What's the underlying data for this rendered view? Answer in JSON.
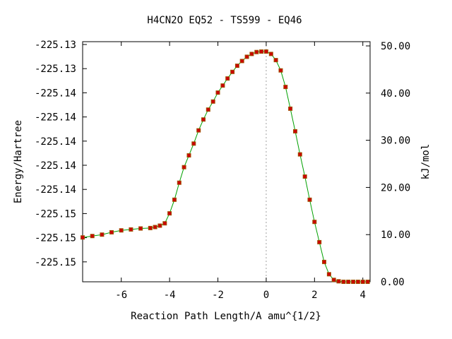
{
  "chart_data": {
    "type": "line",
    "title": "H4CN2O   EQ52 - TS599 - EQ46",
    "xlabel": "Reaction Path Length/A amu^{1/2}",
    "ylabel_left": "Energy/Hartree",
    "ylabel_right": "kJ/mol",
    "xlim": [
      -7.6,
      4.3
    ],
    "y_right_lim": [
      0,
      50.9
    ],
    "x_ticks": [
      -6,
      -4,
      -2,
      0,
      2,
      4
    ],
    "x_tick_labels": [
      "-6",
      "-4",
      "-2",
      "0",
      "2",
      "4"
    ],
    "y_left_tick_labels": [
      "-225.13",
      "-225.13",
      "-225.14",
      "-225.14",
      "-225.14",
      "-225.14",
      "-225.14",
      "-225.15",
      "-225.15",
      "-225.15"
    ],
    "y_right_ticks": [
      0,
      10,
      20,
      30,
      40,
      50
    ],
    "y_right_tick_labels": [
      "0.00",
      "10.00",
      "20.00",
      "30.00",
      "40.00",
      "50.00"
    ],
    "ts_x": 0,
    "grid": false,
    "colors": {
      "points": "#cc0000",
      "line": "#00a000",
      "ts_marker": "#a0a0a0"
    },
    "series": [
      {
        "x": [
          -7.6,
          -7.2,
          -6.8,
          -6.4,
          -6.0,
          -5.6,
          -5.2,
          -4.8,
          -4.6,
          -4.4,
          -4.2,
          -4.0,
          -3.8,
          -3.6,
          -3.4,
          -3.2,
          -3.0,
          -2.8,
          -2.6,
          -2.4,
          -2.2,
          -2.0,
          -1.8,
          -1.6,
          -1.4,
          -1.2,
          -1.0,
          -0.8,
          -0.6,
          -0.4,
          -0.2,
          0.0,
          0.2,
          0.4,
          0.6,
          0.8,
          1.0,
          1.2,
          1.4,
          1.6,
          1.8,
          2.0,
          2.2,
          2.4,
          2.6,
          2.8,
          3.0,
          3.2,
          3.4,
          3.6,
          3.8,
          4.0,
          4.2
        ],
        "y": [
          9.4,
          9.7,
          10.0,
          10.5,
          10.9,
          11.1,
          11.3,
          11.4,
          11.6,
          11.9,
          12.4,
          14.5,
          17.4,
          21.0,
          24.3,
          26.8,
          29.3,
          32.1,
          34.4,
          36.5,
          38.2,
          40.1,
          41.6,
          43.1,
          44.5,
          45.8,
          46.8,
          47.7,
          48.3,
          48.7,
          48.8,
          48.8,
          48.3,
          47.0,
          44.8,
          41.3,
          36.7,
          31.9,
          27.0,
          22.3,
          17.4,
          12.7,
          8.4,
          4.2,
          1.6,
          0.4,
          0.1,
          0.0,
          0.0,
          0.0,
          0.0,
          0.0,
          0.0
        ]
      }
    ]
  }
}
